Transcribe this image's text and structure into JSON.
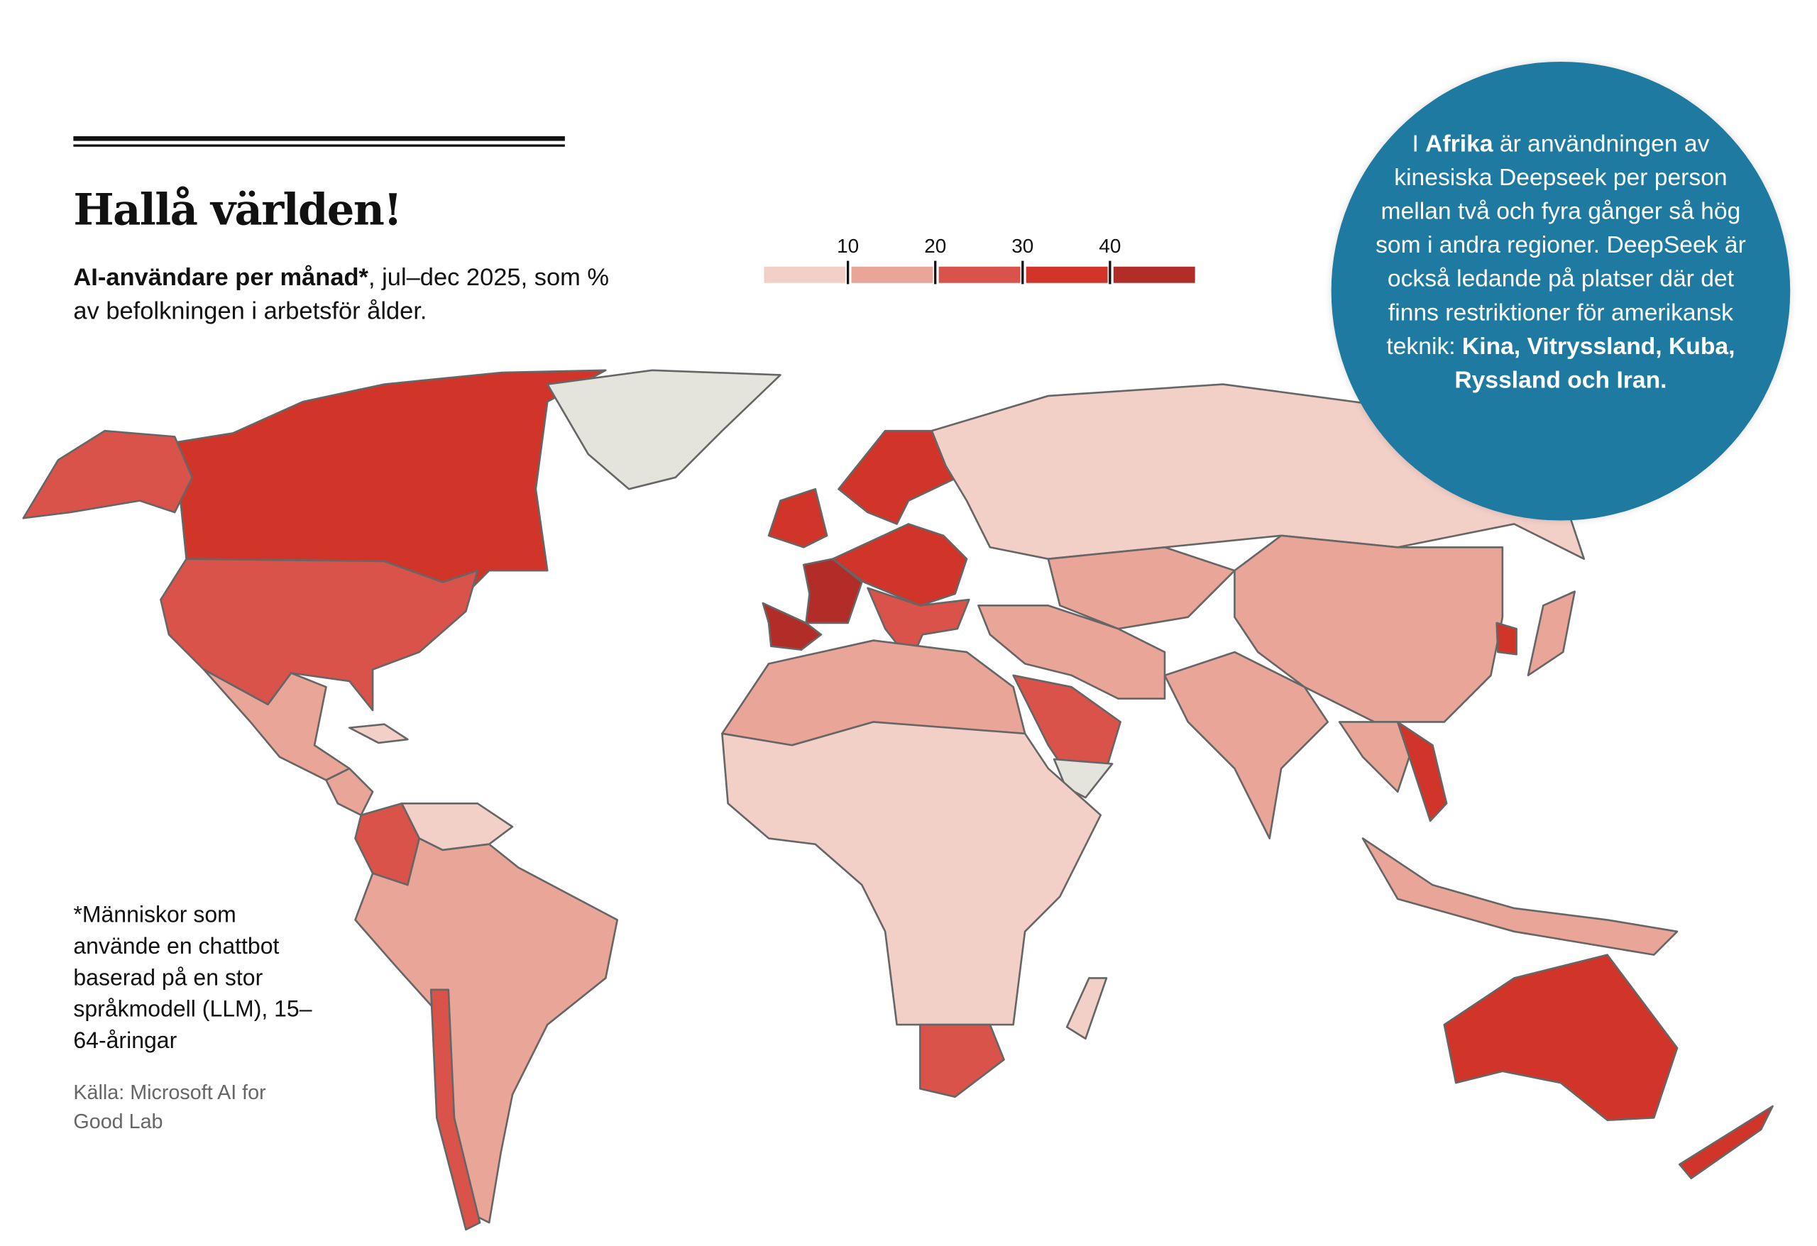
{
  "header": {
    "title": "Hallå världen!",
    "subtitle_bold": "AI-användare per månad*",
    "subtitle_rest": ", jul–dec 2025, som % av befolkningen i arbetsför ålder."
  },
  "legend": {
    "ticks": [
      "10",
      "20",
      "30",
      "40"
    ],
    "colors": [
      "#f2d0c8",
      "#e8a598",
      "#d9534a",
      "#d13428",
      "#b32d28"
    ],
    "no_data_color": "#e4e4dc"
  },
  "callout": {
    "p1": "I ",
    "b1": "Afrika",
    "p2": " är användningen av kinesiska Deepseek per person mellan två och fyra gånger så hög som i andra regioner. DeepSeek är också ledande på platser där det finns restriktioner för amerikansk teknik: ",
    "b2": "Kina, Vitryssland, Kuba, Ryssland och Iran."
  },
  "footnote": "*Människor som använde en chattbot baserad på en stor språkmodell (LLM), 15–64-åringar",
  "source": "Källa: Microsoft AI for Good Lab",
  "chart_data": {
    "type": "choropleth",
    "title": "Hallå världen!",
    "unit": "% av befolkningen 15–64 år",
    "bins": [
      "<10",
      "10–20",
      "20–30",
      "30–40",
      ">40"
    ],
    "regions": [
      {
        "name": "Canada",
        "bin": 3
      },
      {
        "name": "Alaska (USA)",
        "bin": 2
      },
      {
        "name": "USA",
        "bin": 2
      },
      {
        "name": "Greenland",
        "bin": null
      },
      {
        "name": "Mexico",
        "bin": 1
      },
      {
        "name": "Central America",
        "bin": 1
      },
      {
        "name": "Cuba",
        "bin": 0
      },
      {
        "name": "Colombia",
        "bin": 2
      },
      {
        "name": "Venezuela",
        "bin": 0
      },
      {
        "name": "South America",
        "bin": 1
      },
      {
        "name": "Chile",
        "bin": 2
      },
      {
        "name": "United Kingdom",
        "bin": 3
      },
      {
        "name": "France",
        "bin": 4
      },
      {
        "name": "Spain",
        "bin": 4
      },
      {
        "name": "Nordics",
        "bin": 3
      },
      {
        "name": "Central Europe",
        "bin": 3
      },
      {
        "name": "Southern Europe",
        "bin": 2
      },
      {
        "name": "Russia",
        "bin": 0
      },
      {
        "name": "Central Asia",
        "bin": 1
      },
      {
        "name": "China",
        "bin": 1
      },
      {
        "name": "South Korea",
        "bin": 3
      },
      {
        "name": "Japan",
        "bin": 1
      },
      {
        "name": "Middle East",
        "bin": 1
      },
      {
        "name": "Saudi Arabia",
        "bin": 2
      },
      {
        "name": "Yemen",
        "bin": null
      },
      {
        "name": "India",
        "bin": 1
      },
      {
        "name": "Southeast Asia",
        "bin": 1
      },
      {
        "name": "Vietnam",
        "bin": 3
      },
      {
        "name": "Indonesia",
        "bin": 1
      },
      {
        "name": "North Africa",
        "bin": 1
      },
      {
        "name": "Sub-Saharan Africa",
        "bin": 0
      },
      {
        "name": "South Africa",
        "bin": 2
      },
      {
        "name": "Madagascar",
        "bin": 0
      },
      {
        "name": "Australia",
        "bin": 3
      },
      {
        "name": "New Zealand",
        "bin": 3
      }
    ]
  }
}
